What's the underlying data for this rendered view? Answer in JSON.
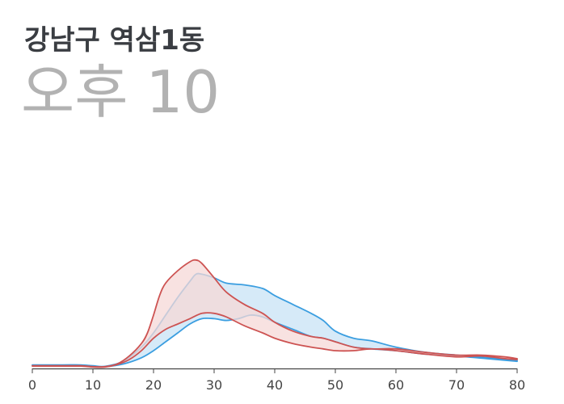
{
  "chart_data": {
    "type": "area",
    "title": "강남구 역삼1동",
    "subtitle": {
      "period": "오후",
      "hour": "10"
    },
    "x_ticks": [
      "0",
      "10",
      "20",
      "30",
      "40",
      "50",
      "60",
      "70",
      "80"
    ],
    "xlim": [
      0,
      80
    ],
    "grid": false,
    "legend": "none",
    "series": [
      {
        "color": "#3b9ee0",
        "fill": "#d6eaf8",
        "upper": [
          [
            0,
            2.0
          ],
          [
            5,
            2.0
          ],
          [
            8,
            2.0
          ],
          [
            10,
            1.5
          ],
          [
            12,
            1.2
          ],
          [
            15,
            4
          ],
          [
            18,
            12
          ],
          [
            20,
            20
          ],
          [
            22,
            30
          ],
          [
            24,
            40
          ],
          [
            26,
            49
          ],
          [
            27,
            53
          ],
          [
            28,
            53
          ],
          [
            30,
            51
          ],
          [
            32,
            48
          ],
          [
            35,
            47
          ],
          [
            38,
            45
          ],
          [
            40,
            41
          ],
          [
            43,
            36
          ],
          [
            46,
            31
          ],
          [
            48,
            27
          ],
          [
            50,
            21
          ],
          [
            53,
            17
          ],
          [
            56,
            15.5
          ],
          [
            60,
            12
          ],
          [
            65,
            9
          ],
          [
            70,
            7.5
          ],
          [
            75,
            6
          ],
          [
            80,
            4.5
          ]
        ],
        "lower": [
          [
            0,
            1.8
          ],
          [
            5,
            1.8
          ],
          [
            8,
            1.8
          ],
          [
            10,
            1.2
          ],
          [
            12,
            1.0
          ],
          [
            15,
            2.5
          ],
          [
            18,
            6
          ],
          [
            20,
            10
          ],
          [
            22,
            15
          ],
          [
            24,
            20
          ],
          [
            26,
            25
          ],
          [
            28,
            28
          ],
          [
            30,
            28
          ],
          [
            32,
            27
          ],
          [
            34,
            28
          ],
          [
            36,
            30
          ],
          [
            38,
            29
          ],
          [
            40,
            26
          ],
          [
            43,
            22
          ],
          [
            46,
            18
          ],
          [
            48,
            17
          ],
          [
            50,
            15
          ],
          [
            53,
            12
          ],
          [
            56,
            11
          ],
          [
            60,
            10
          ],
          [
            65,
            8
          ],
          [
            70,
            7
          ],
          [
            75,
            5.5
          ],
          [
            80,
            4
          ]
        ]
      },
      {
        "color": "#cd5352",
        "fill": "#f5d8d7",
        "upper": [
          [
            0,
            1.5
          ],
          [
            5,
            1.5
          ],
          [
            8,
            1.5
          ],
          [
            10,
            1.0
          ],
          [
            12,
            1.0
          ],
          [
            14,
            2.5
          ],
          [
            16,
            7
          ],
          [
            18,
            14
          ],
          [
            19,
            20
          ],
          [
            20,
            30
          ],
          [
            21,
            41
          ],
          [
            22,
            48
          ],
          [
            24,
            55
          ],
          [
            26,
            60
          ],
          [
            27,
            61
          ],
          [
            28,
            59
          ],
          [
            30,
            51
          ],
          [
            32,
            43
          ],
          [
            35,
            36
          ],
          [
            38,
            31
          ],
          [
            40,
            26
          ],
          [
            43,
            21
          ],
          [
            46,
            18
          ],
          [
            48,
            17
          ],
          [
            50,
            15
          ],
          [
            53,
            12
          ],
          [
            56,
            11
          ],
          [
            60,
            11
          ],
          [
            65,
            9
          ],
          [
            70,
            7.5
          ],
          [
            74,
            7.5
          ],
          [
            78,
            6.5
          ],
          [
            80,
            5.5
          ]
        ],
        "lower": [
          [
            0,
            1.3
          ],
          [
            5,
            1.3
          ],
          [
            8,
            1.3
          ],
          [
            10,
            0.8
          ],
          [
            12,
            0.8
          ],
          [
            14,
            2.2
          ],
          [
            16,
            5
          ],
          [
            18,
            10
          ],
          [
            20,
            17
          ],
          [
            22,
            22
          ],
          [
            24,
            25
          ],
          [
            26,
            28
          ],
          [
            28,
            31
          ],
          [
            30,
            31
          ],
          [
            32,
            29
          ],
          [
            35,
            24
          ],
          [
            38,
            20
          ],
          [
            40,
            17
          ],
          [
            43,
            14
          ],
          [
            46,
            12
          ],
          [
            48,
            11
          ],
          [
            50,
            10
          ],
          [
            53,
            10
          ],
          [
            56,
            11
          ],
          [
            60,
            10
          ],
          [
            65,
            8
          ],
          [
            70,
            6.5
          ],
          [
            74,
            7
          ],
          [
            78,
            5.5
          ],
          [
            80,
            5
          ]
        ]
      }
    ],
    "ylim": [
      0,
      100
    ]
  }
}
